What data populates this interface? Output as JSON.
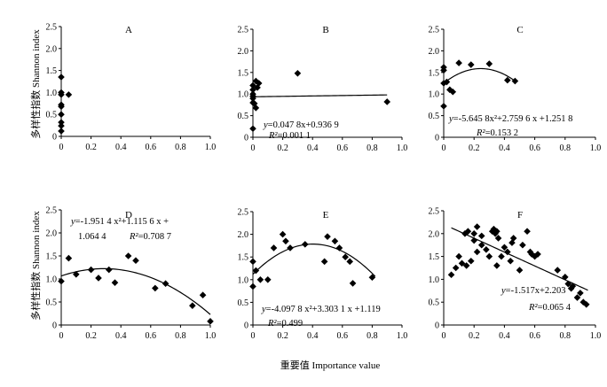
{
  "figure": {
    "y_axis_label": "多样性指数 Shannon index",
    "x_axis_label": "重要值 Importance value"
  },
  "chart_data": [
    {
      "type": "scatter",
      "title": "A",
      "xlim": [
        0,
        1.0
      ],
      "ylim": [
        0,
        2.5
      ],
      "xticks": [
        "0",
        "0.2",
        "0.4",
        "0.6",
        "0.8",
        "1.0"
      ],
      "yticks": [
        "0",
        "0.5",
        "1.0",
        "1.5",
        "2.0",
        "2.5"
      ],
      "x": [
        0.0,
        0.0,
        0.0,
        0.0,
        0.0,
        0.0,
        0.0,
        0.0,
        0.0,
        0.05
      ],
      "y": [
        1.35,
        1.0,
        0.95,
        0.72,
        0.68,
        0.5,
        0.32,
        0.24,
        0.12,
        0.95
      ],
      "trend": null,
      "equation": []
    },
    {
      "type": "scatter",
      "title": "B",
      "xlim": [
        0,
        1.0
      ],
      "ylim": [
        0,
        2.5
      ],
      "xticks": [
        "0",
        "0.2",
        "0.4",
        "0.6",
        "0.8",
        "1.0"
      ],
      "yticks": [
        "0",
        "0.5",
        "1.0",
        "1.5",
        "2.0",
        "2.5"
      ],
      "x": [
        0.0,
        0.0,
        0.0,
        0.0,
        0.0,
        0.0,
        0.0,
        0.01,
        0.02,
        0.03,
        0.04,
        0.02,
        0.3,
        0.9
      ],
      "y": [
        1.2,
        1.1,
        1.0,
        0.95,
        0.9,
        0.8,
        0.2,
        0.78,
        1.3,
        1.15,
        1.25,
        0.68,
        1.48,
        0.82
      ],
      "trend": {
        "type": "linear",
        "coef": [
          0.0478,
          0.9369
        ],
        "x_range": [
          0.0,
          0.9
        ]
      },
      "equation": [
        "y=0.047 8x+0.936 9",
        "R²=0.001 1"
      ]
    },
    {
      "type": "scatter",
      "title": "C",
      "xlim": [
        0,
        1.0
      ],
      "ylim": [
        0,
        2.5
      ],
      "xticks": [
        "0",
        "0.2",
        "0.4",
        "0.6",
        "0.8",
        "1.0"
      ],
      "yticks": [
        "0",
        "0.5",
        "1.0",
        "1.5",
        "2.0",
        "2.5"
      ],
      "x": [
        0.0,
        0.0,
        0.0,
        0.0,
        0.02,
        0.04,
        0.06,
        0.1,
        0.18,
        0.3,
        0.42,
        0.47
      ],
      "y": [
        1.62,
        1.55,
        1.25,
        0.72,
        1.28,
        1.1,
        1.05,
        1.72,
        1.68,
        1.7,
        1.32,
        1.3
      ],
      "trend": {
        "type": "quadratic",
        "coef": [
          -5.6458,
          2.7596,
          1.2518
        ],
        "x_range": [
          0.0,
          0.48
        ]
      },
      "equation": [
        "y=-5.645 8x²+2.759 6 x +1.251 8",
        "R²=0.153 2"
      ]
    },
    {
      "type": "scatter",
      "title": "D",
      "xlim": [
        0,
        1.0
      ],
      "ylim": [
        0,
        2.5
      ],
      "xticks": [
        "0",
        "0.2",
        "0.4",
        "0.6",
        "0.8",
        "1.0"
      ],
      "yticks": [
        "0",
        "0.5",
        "1.0",
        "1.5",
        "2.0",
        "2.5"
      ],
      "x": [
        0.0,
        0.05,
        0.1,
        0.2,
        0.25,
        0.32,
        0.36,
        0.45,
        0.5,
        0.63,
        0.7,
        0.88,
        0.95,
        1.0
      ],
      "y": [
        0.95,
        1.45,
        1.1,
        1.2,
        1.02,
        1.2,
        0.92,
        1.5,
        1.4,
        0.8,
        0.9,
        0.42,
        0.65,
        0.08
      ],
      "trend": {
        "type": "quadratic",
        "coef": [
          -1.9514,
          1.1156,
          1.0644
        ],
        "x_range": [
          0.0,
          1.0
        ]
      },
      "equation": [
        "y=-1.951 4 x²+1.115 6 x +",
        "1.064 4",
        "R²=0.708 7"
      ]
    },
    {
      "type": "scatter",
      "title": "E",
      "xlim": [
        0,
        1.0
      ],
      "ylim": [
        0,
        2.5
      ],
      "xticks": [
        "0",
        "0.2",
        "0.4",
        "0.6",
        "0.8",
        "1.0"
      ],
      "yticks": [
        "0",
        "0.5",
        "1.0",
        "1.5",
        "2.0",
        "2.5"
      ],
      "x": [
        0.0,
        0.0,
        0.02,
        0.05,
        0.1,
        0.14,
        0.2,
        0.22,
        0.25,
        0.35,
        0.48,
        0.5,
        0.55,
        0.58,
        0.62,
        0.65,
        0.67,
        0.8
      ],
      "y": [
        1.4,
        0.85,
        1.2,
        1.0,
        1.0,
        1.7,
        2.0,
        1.85,
        1.7,
        1.78,
        1.4,
        1.95,
        1.85,
        1.7,
        1.5,
        1.4,
        0.92,
        1.05
      ],
      "trend": {
        "type": "quadratic",
        "coef": [
          -4.0978,
          3.3031,
          1.119
        ],
        "x_range": [
          0.0,
          0.82
        ]
      },
      "equation": [
        "y=-4.097 8 x²+3.303 1 x +1.119",
        "R²=0.499"
      ]
    },
    {
      "type": "scatter",
      "title": "F",
      "xlim": [
        0,
        1.0
      ],
      "ylim": [
        0,
        2.5
      ],
      "xticks": [
        "0",
        "0.2",
        "0.4",
        "0.6",
        "0.8",
        "1.0"
      ],
      "yticks": [
        "0",
        "0.5",
        "1.0",
        "1.5",
        "2.0",
        "2.5"
      ],
      "x": [
        0.05,
        0.08,
        0.1,
        0.12,
        0.14,
        0.15,
        0.16,
        0.18,
        0.2,
        0.2,
        0.22,
        0.22,
        0.25,
        0.25,
        0.28,
        0.3,
        0.32,
        0.33,
        0.34,
        0.35,
        0.35,
        0.36,
        0.38,
        0.4,
        0.42,
        0.44,
        0.45,
        0.46,
        0.5,
        0.52,
        0.55,
        0.57,
        0.58,
        0.6,
        0.62,
        0.75,
        0.8,
        0.82,
        0.84,
        0.85,
        0.88,
        0.9,
        0.92,
        0.94
      ],
      "y": [
        1.1,
        1.25,
        1.5,
        1.35,
        2.0,
        1.3,
        2.05,
        1.4,
        2.0,
        1.85,
        2.15,
        1.6,
        1.95,
        1.75,
        1.65,
        1.5,
        2.05,
        2.1,
        2.0,
        2.05,
        1.3,
        1.9,
        1.5,
        1.7,
        1.6,
        1.4,
        1.8,
        1.9,
        1.2,
        1.75,
        2.05,
        1.6,
        1.55,
        1.5,
        1.55,
        1.2,
        1.05,
        0.9,
        0.8,
        0.85,
        0.6,
        0.7,
        0.5,
        0.45
      ],
      "trend": {
        "type": "linear",
        "coef": [
          -1.517,
          2.203
        ],
        "x_range": [
          0.05,
          0.95
        ]
      },
      "equation": [
        "y=-1.517x+2.203",
        "R²=0.065 4"
      ]
    }
  ]
}
